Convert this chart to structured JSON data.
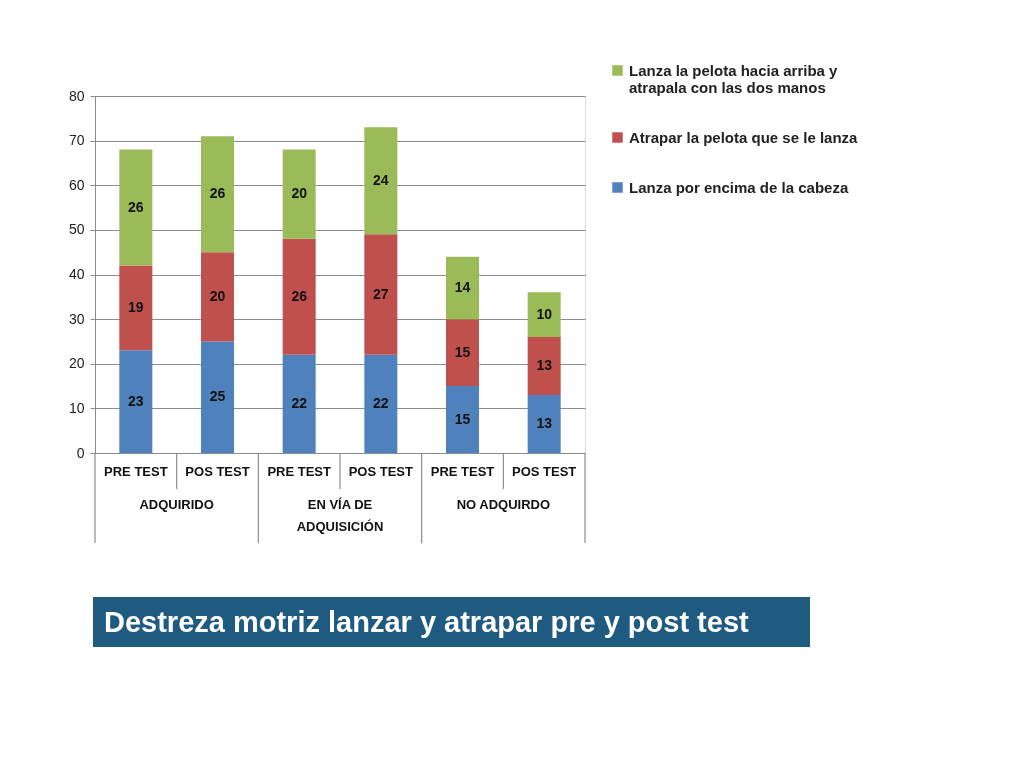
{
  "chart_data": {
    "type": "bar",
    "stacked": true,
    "title": "Destreza motriz lanzar y atrapar pre y post test",
    "categories": [
      "PRE TEST",
      "POS TEST",
      "PRE TEST",
      "POS TEST",
      "PRE TEST",
      "POS TEST"
    ],
    "series": [
      {
        "name": "Lanza por encima de la cabeza",
        "color": "#4f81bd",
        "values": [
          23,
          25,
          22,
          22,
          15,
          13
        ]
      },
      {
        "name": "Atrapar la pelota que se le lanza",
        "color": "#c0504d",
        "values": [
          19,
          20,
          26,
          27,
          15,
          13
        ]
      },
      {
        "name": "Lanza la pelota hacia arriba y atrapala con las dos manos",
        "color": "#9bbb59",
        "values": [
          26,
          26,
          20,
          24,
          14,
          10
        ]
      }
    ],
    "ylim": [
      0,
      80
    ],
    "yticks": [
      0,
      10,
      20,
      30,
      40,
      50,
      60,
      70,
      80
    ],
    "grid": "y",
    "legend": "top right",
    "data_labels": true,
    "annotations": [
      "ADQUIRIDO",
      "EN VÍA DE ADQUISICIÓN",
      "NO ADQUIRDO"
    ]
  }
}
